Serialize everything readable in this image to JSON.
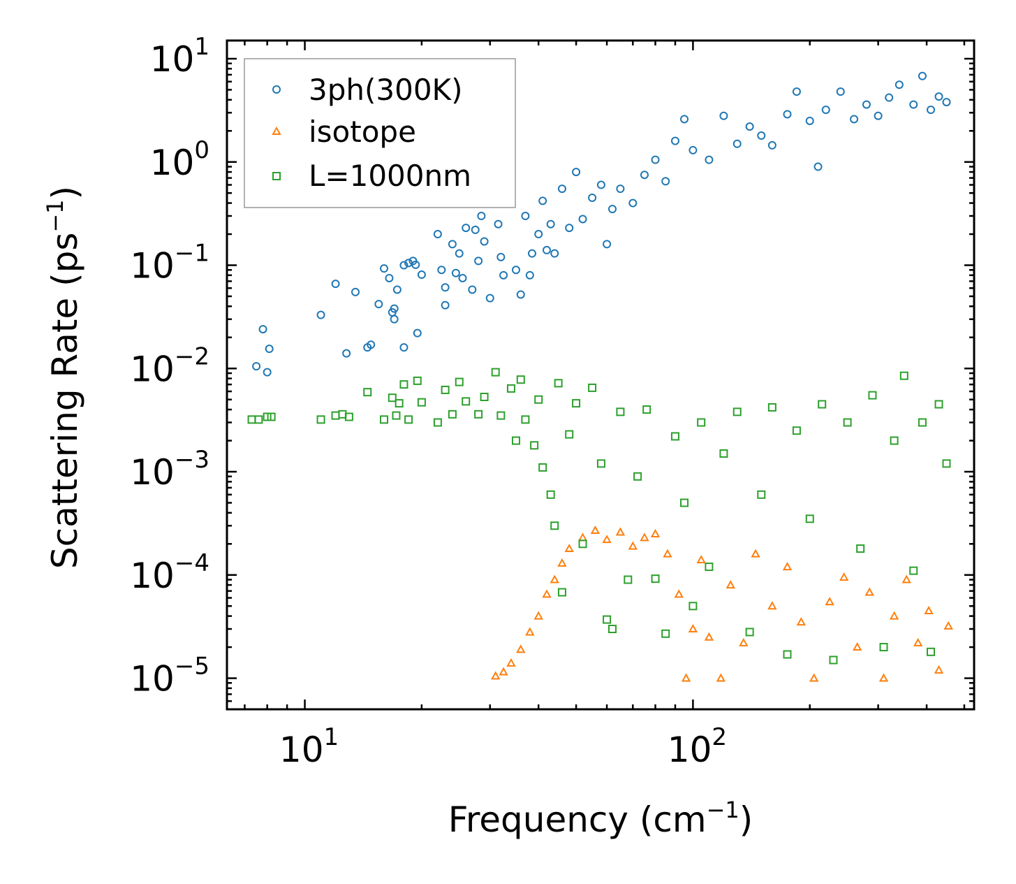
{
  "chart_data": {
    "type": "scatter",
    "title": "",
    "xlabel": "Frequency (cm",
    "xlabel_sup": "−1",
    "xlabel_end": ")",
    "ylabel": "Scattering Rate (ps",
    "ylabel_sup": "−1",
    "ylabel_end": ")",
    "xscale": "log",
    "yscale": "log",
    "xlim": [
      6.3,
      530
    ],
    "ylim": [
      5e-06,
      15
    ],
    "xticks": [
      {
        "value": 10,
        "base": "10",
        "exp": "1"
      },
      {
        "value": 100,
        "base": "10",
        "exp": "2"
      }
    ],
    "yticks": [
      {
        "value": 10,
        "base": "10",
        "exp": "1"
      },
      {
        "value": 1,
        "base": "10",
        "exp": "0"
      },
      {
        "value": 0.1,
        "base": "10",
        "exp": "−1"
      },
      {
        "value": 0.01,
        "base": "10",
        "exp": "−2"
      },
      {
        "value": 0.001,
        "base": "10",
        "exp": "−3"
      },
      {
        "value": 0.0001,
        "base": "10",
        "exp": "−4"
      },
      {
        "value": 1e-05,
        "base": "10",
        "exp": "−5"
      }
    ],
    "legend_position": "top-left",
    "series": [
      {
        "name": "3ph(300K)",
        "marker": "circle",
        "color": "#1f77b4",
        "points": [
          [
            7.5,
            0.0105
          ],
          [
            7.8,
            0.024
          ],
          [
            8.0,
            0.0092
          ],
          [
            8.1,
            0.0155
          ],
          [
            11.0,
            0.033
          ],
          [
            12.0,
            0.066
          ],
          [
            12.8,
            0.014
          ],
          [
            13.5,
            0.055
          ],
          [
            14.5,
            0.016
          ],
          [
            14.8,
            0.017
          ],
          [
            15.5,
            0.042
          ],
          [
            16.0,
            0.093
          ],
          [
            16.5,
            0.075
          ],
          [
            16.8,
            0.035
          ],
          [
            17.0,
            0.038
          ],
          [
            17.0,
            0.03
          ],
          [
            17.3,
            0.058
          ],
          [
            18.0,
            0.1
          ],
          [
            18.0,
            0.016
          ],
          [
            18.5,
            0.105
          ],
          [
            19.0,
            0.11
          ],
          [
            19.3,
            0.101
          ],
          [
            19.5,
            0.022
          ],
          [
            20.0,
            0.081
          ],
          [
            22.0,
            0.2
          ],
          [
            22.5,
            0.09
          ],
          [
            23.0,
            0.061
          ],
          [
            23.0,
            0.041
          ],
          [
            24.0,
            0.16
          ],
          [
            24.5,
            0.084
          ],
          [
            25.0,
            0.13
          ],
          [
            25.5,
            0.075
          ],
          [
            26.0,
            0.23
          ],
          [
            27.0,
            0.058
          ],
          [
            27.5,
            0.22
          ],
          [
            28.0,
            0.11
          ],
          [
            28.5,
            0.3
          ],
          [
            29.0,
            0.17
          ],
          [
            30.0,
            0.048
          ],
          [
            31.0,
            0.4
          ],
          [
            31.5,
            0.25
          ],
          [
            32.0,
            0.12
          ],
          [
            32.5,
            0.08
          ],
          [
            33.0,
            0.45
          ],
          [
            34.0,
            0.46
          ],
          [
            35.0,
            0.09
          ],
          [
            36.0,
            0.052
          ],
          [
            37.0,
            0.3
          ],
          [
            38.0,
            0.08
          ],
          [
            38.5,
            0.13
          ],
          [
            40.0,
            0.2
          ],
          [
            41.0,
            0.42
          ],
          [
            42.0,
            0.14
          ],
          [
            43.0,
            0.25
          ],
          [
            44.0,
            0.13
          ],
          [
            46.0,
            0.55
          ],
          [
            48.0,
            0.23
          ],
          [
            50.0,
            0.8
          ],
          [
            52.0,
            0.28
          ],
          [
            55.0,
            0.45
          ],
          [
            58.0,
            0.6
          ],
          [
            60.0,
            0.16
          ],
          [
            62.0,
            0.35
          ],
          [
            65.0,
            0.55
          ],
          [
            70.0,
            0.4
          ],
          [
            75.0,
            0.75
          ],
          [
            80.0,
            1.05
          ],
          [
            85.0,
            0.65
          ],
          [
            90.0,
            1.6
          ],
          [
            95.0,
            2.6
          ],
          [
            100.0,
            1.3
          ],
          [
            110.0,
            1.05
          ],
          [
            120.0,
            2.8
          ],
          [
            130.0,
            1.5
          ],
          [
            140.0,
            2.2
          ],
          [
            150.0,
            1.8
          ],
          [
            160.0,
            1.45
          ],
          [
            175.0,
            2.9
          ],
          [
            185.0,
            4.8
          ],
          [
            200.0,
            2.5
          ],
          [
            210.0,
            0.9
          ],
          [
            220.0,
            3.2
          ],
          [
            240.0,
            4.8
          ],
          [
            260.0,
            2.6
          ],
          [
            280.0,
            3.6
          ],
          [
            300.0,
            2.8
          ],
          [
            320.0,
            4.2
          ],
          [
            340.0,
            5.6
          ],
          [
            370.0,
            3.6
          ],
          [
            390.0,
            6.8
          ],
          [
            410.0,
            3.2
          ],
          [
            430.0,
            4.3
          ],
          [
            450.0,
            3.8
          ]
        ]
      },
      {
        "name": "isotope",
        "marker": "triangle",
        "color": "#ff7f0e",
        "points": [
          [
            31.0,
            1.05e-05
          ],
          [
            32.5,
            1.15e-05
          ],
          [
            34.0,
            1.4e-05
          ],
          [
            36.0,
            1.9e-05
          ],
          [
            38.0,
            2.8e-05
          ],
          [
            40.0,
            4e-05
          ],
          [
            42.0,
            6.5e-05
          ],
          [
            44.0,
            9e-05
          ],
          [
            46.0,
            0.00013
          ],
          [
            48.0,
            0.00018
          ],
          [
            52.0,
            0.00023
          ],
          [
            56.0,
            0.00027
          ],
          [
            60.0,
            0.00022
          ],
          [
            65.0,
            0.00026
          ],
          [
            70.0,
            0.00019
          ],
          [
            75.0,
            0.00023
          ],
          [
            80.0,
            0.00025
          ],
          [
            86.0,
            0.00016
          ],
          [
            92.0,
            6.5e-05
          ],
          [
            96.0,
            1e-05
          ],
          [
            100.0,
            3e-05
          ],
          [
            105.0,
            0.00014
          ],
          [
            110.0,
            2.5e-05
          ],
          [
            118.0,
            1e-05
          ],
          [
            125.0,
            8e-05
          ],
          [
            135.0,
            2.2e-05
          ],
          [
            145.0,
            0.00016
          ],
          [
            160.0,
            5e-05
          ],
          [
            175.0,
            0.00012
          ],
          [
            190.0,
            3.5e-05
          ],
          [
            205.0,
            1e-05
          ],
          [
            225.0,
            5.5e-05
          ],
          [
            245.0,
            9.5e-05
          ],
          [
            265.0,
            2e-05
          ],
          [
            285.0,
            6.8e-05
          ],
          [
            310.0,
            1e-05
          ],
          [
            330.0,
            4e-05
          ],
          [
            355.0,
            9e-05
          ],
          [
            380.0,
            2.2e-05
          ],
          [
            405.0,
            4.5e-05
          ],
          [
            430.0,
            1.2e-05
          ],
          [
            455.0,
            3.2e-05
          ]
        ]
      },
      {
        "name": "L=1000nm",
        "marker": "square",
        "color": "#2ca02c",
        "points": [
          [
            7.3,
            0.0032
          ],
          [
            7.6,
            0.0032
          ],
          [
            8.0,
            0.0034
          ],
          [
            8.2,
            0.0034
          ],
          [
            11.0,
            0.0032
          ],
          [
            12.0,
            0.0035
          ],
          [
            12.5,
            0.0036
          ],
          [
            13.0,
            0.0034
          ],
          [
            14.5,
            0.0059
          ],
          [
            16.0,
            0.0032
          ],
          [
            16.8,
            0.0052
          ],
          [
            17.2,
            0.0035
          ],
          [
            17.5,
            0.0046
          ],
          [
            18.0,
            0.007
          ],
          [
            18.5,
            0.0032
          ],
          [
            19.5,
            0.0076
          ],
          [
            20.0,
            0.0047
          ],
          [
            22.0,
            0.003
          ],
          [
            23.0,
            0.0062
          ],
          [
            24.0,
            0.0036
          ],
          [
            25.0,
            0.0074
          ],
          [
            26.0,
            0.0048
          ],
          [
            28.0,
            0.0036
          ],
          [
            29.0,
            0.0053
          ],
          [
            31.0,
            0.0092
          ],
          [
            32.0,
            0.0035
          ],
          [
            34.0,
            0.0064
          ],
          [
            35.0,
            0.002
          ],
          [
            36.0,
            0.0078
          ],
          [
            37.0,
            0.0032
          ],
          [
            39.0,
            0.0018
          ],
          [
            40.0,
            0.005
          ],
          [
            41.0,
            0.0011
          ],
          [
            43.0,
            0.0006
          ],
          [
            44.0,
            0.0003
          ],
          [
            45.0,
            0.0072
          ],
          [
            46.0,
            6.8e-05
          ],
          [
            48.0,
            0.0023
          ],
          [
            50.0,
            0.0046
          ],
          [
            52.0,
            0.0002
          ],
          [
            55.0,
            0.0065
          ],
          [
            58.0,
            0.0012
          ],
          [
            60.0,
            3.7e-05
          ],
          [
            62.0,
            3e-05
          ],
          [
            65.0,
            0.0038
          ],
          [
            68.0,
            9e-05
          ],
          [
            72.0,
            0.0009
          ],
          [
            76.0,
            0.004
          ],
          [
            80.0,
            9.2e-05
          ],
          [
            85.0,
            2.7e-05
          ],
          [
            90.0,
            0.0022
          ],
          [
            95.0,
            0.0005
          ],
          [
            100.0,
            5e-05
          ],
          [
            105.0,
            0.003
          ],
          [
            110.0,
            0.00012
          ],
          [
            120.0,
            0.0015
          ],
          [
            130.0,
            0.0038
          ],
          [
            140.0,
            2.8e-05
          ],
          [
            150.0,
            0.0006
          ],
          [
            160.0,
            0.0042
          ],
          [
            175.0,
            1.7e-05
          ],
          [
            185.0,
            0.0025
          ],
          [
            200.0,
            0.00035
          ],
          [
            215.0,
            0.0045
          ],
          [
            230.0,
            1.5e-05
          ],
          [
            250.0,
            0.003
          ],
          [
            270.0,
            0.00018
          ],
          [
            290.0,
            0.0055
          ],
          [
            310.0,
            2e-05
          ],
          [
            330.0,
            0.002
          ],
          [
            350.0,
            0.0085
          ],
          [
            370.0,
            0.00011
          ],
          [
            390.0,
            0.003
          ],
          [
            410.0,
            1.8e-05
          ],
          [
            430.0,
            0.0045
          ],
          [
            450.0,
            0.0012
          ]
        ]
      }
    ]
  }
}
